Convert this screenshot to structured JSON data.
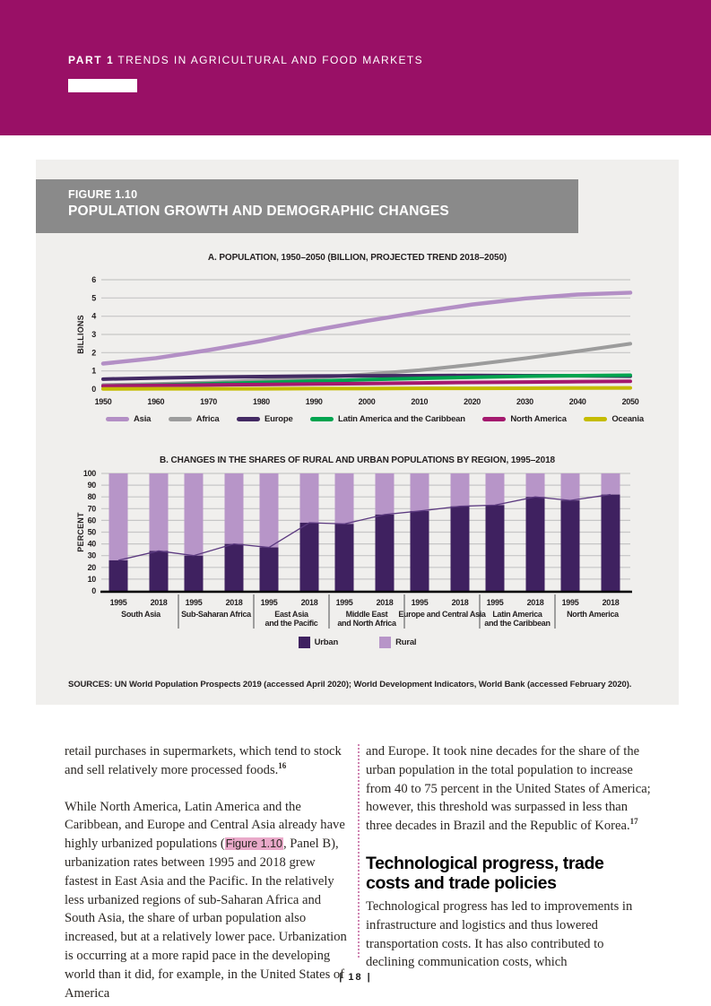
{
  "header": {
    "part_label": "PART 1",
    "part_title": "TRENDS IN AGRICULTURAL AND FOOD MARKETS"
  },
  "figure": {
    "label": "FIGURE 1.10",
    "title": "POPULATION GROWTH AND DEMOGRAPHIC CHANGES",
    "sources": "SOURCES: UN World Population Prospects 2019 (accessed April 2020); World Development Indicators, World Bank (accessed February 2020)."
  },
  "colors": {
    "accent_magenta": "#991066",
    "titlebar_gray": "#8a8a8a",
    "panel_gray": "#f0efed",
    "gridline": "#c6c6c6",
    "link_highlight": "#e9a9c9"
  },
  "chart_data": [
    {
      "type": "line",
      "title": "A. POPULATION, 1950–2050 (BILLION, PROJECTED TREND 2018–2050)",
      "ylabel": "BILLIONS",
      "ylim": [
        0,
        6
      ],
      "yticks": [
        0,
        1,
        2,
        3,
        4,
        5,
        6
      ],
      "x": [
        1950,
        1960,
        1970,
        1980,
        1990,
        2000,
        2010,
        2020,
        2030,
        2040,
        2050
      ],
      "grid": "horizontal",
      "legend_position": "bottom",
      "series": [
        {
          "name": "Asia",
          "color": "#b38fc5",
          "values": [
            1.4,
            1.7,
            2.14,
            2.64,
            3.23,
            3.74,
            4.21,
            4.64,
            4.97,
            5.19,
            5.29
          ]
        },
        {
          "name": "Africa",
          "color": "#9c9c9c",
          "values": [
            0.23,
            0.28,
            0.36,
            0.48,
            0.63,
            0.81,
            1.04,
            1.34,
            1.69,
            2.08,
            2.49
          ]
        },
        {
          "name": "Europe",
          "color": "#432a63",
          "values": [
            0.55,
            0.61,
            0.66,
            0.69,
            0.72,
            0.73,
            0.74,
            0.75,
            0.74,
            0.73,
            0.71
          ]
        },
        {
          "name": "Latin America and the Caribbean",
          "color": "#00a44f",
          "values": [
            0.17,
            0.22,
            0.29,
            0.36,
            0.44,
            0.52,
            0.59,
            0.65,
            0.71,
            0.74,
            0.76
          ]
        },
        {
          "name": "North America",
          "color": "#a4196e",
          "values": [
            0.17,
            0.2,
            0.23,
            0.25,
            0.28,
            0.31,
            0.34,
            0.37,
            0.39,
            0.41,
            0.43
          ]
        },
        {
          "name": "Oceania",
          "color": "#c5bc00",
          "values": [
            0.01,
            0.02,
            0.02,
            0.02,
            0.03,
            0.03,
            0.04,
            0.04,
            0.05,
            0.06,
            0.07
          ]
        }
      ]
    },
    {
      "type": "bar",
      "title": "B. CHANGES IN THE SHARES OF RURAL AND URBAN POPULATIONS BY REGION, 1995–2018",
      "ylabel": "PERCENT",
      "ylim": [
        0,
        100
      ],
      "yticks": [
        0,
        10,
        20,
        30,
        40,
        50,
        60,
        70,
        80,
        90,
        100
      ],
      "stacked_to": 100,
      "bar_years": [
        "1995",
        "2018"
      ],
      "legend": [
        "Urban",
        "Rural"
      ],
      "legend_position": "bottom",
      "colors": {
        "urban": "#3f2160",
        "rural": "#b795c8",
        "trend_line": "#5c3a80"
      },
      "groups": [
        {
          "region": "South Asia",
          "lines": [
            "South Asia"
          ],
          "urban": [
            26,
            34
          ],
          "rural": [
            74,
            66
          ]
        },
        {
          "region": "Sub-Saharan Africa",
          "lines": [
            "Sub-Saharan Africa"
          ],
          "urban": [
            30,
            40
          ],
          "rural": [
            70,
            60
          ]
        },
        {
          "region": "East Asia and the Pacific",
          "lines": [
            "East Asia",
            "and the Pacific"
          ],
          "urban": [
            37,
            58
          ],
          "rural": [
            63,
            42
          ]
        },
        {
          "region": "Middle East and North Africa",
          "lines": [
            "Middle East",
            "and North Africa"
          ],
          "urban": [
            57,
            65
          ],
          "rural": [
            43,
            35
          ]
        },
        {
          "region": "Europe and Central Asia",
          "lines": [
            "Europe and Central Asia"
          ],
          "urban": [
            68,
            72
          ],
          "rural": [
            32,
            28
          ]
        },
        {
          "region": "Latin America and the Caribbean",
          "lines": [
            "Latin America",
            "and the Caribbean"
          ],
          "urban": [
            73,
            80
          ],
          "rural": [
            27,
            20
          ]
        },
        {
          "region": "North America",
          "lines": [
            "North America"
          ],
          "urban": [
            77,
            82
          ],
          "rural": [
            23,
            18
          ]
        }
      ]
    }
  ],
  "body": {
    "left": {
      "p1": "retail purchases in supermarkets, which tend to stock and sell relatively more processed foods.",
      "p1_sup": "16",
      "p2_before": "While North America, Latin America and the Caribbean, and Europe and Central Asia already have highly urbanized populations (",
      "p2_link": "Figure 1.10",
      "p2_after": ", Panel B), urbanization rates between 1995 and 2018 grew fastest in East Asia and the Pacific. In the relatively less urbanized regions of sub-Saharan Africa and South Asia, the share of urban population also increased, but at a relatively lower pace. Urbanization is occurring at a more rapid pace in the developing world than it did, for example, in the United States of America"
    },
    "right": {
      "p1": "and Europe. It took nine decades for the share of the urban population in the total population to increase from 40 to 75 percent in the United States of America; however, this threshold was surpassed in less than three decades in Brazil and the Republic of Korea.",
      "p1_sup": "17",
      "heading": "Technological progress, trade costs and trade policies",
      "p2": "Technological progress has led to improvements in infrastructure and logistics and thus lowered transportation costs. It has also contributed to declining communication costs, which"
    }
  },
  "footer": {
    "page_label": "| 18 |"
  }
}
